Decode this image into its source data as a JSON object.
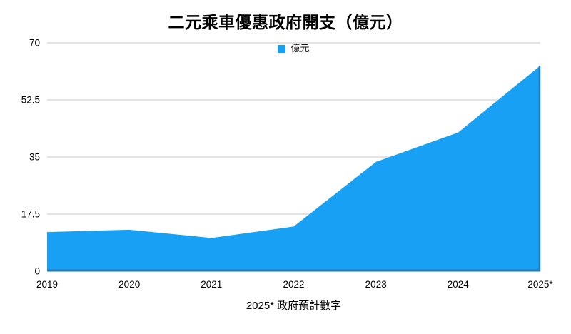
{
  "chart_data": {
    "type": "area",
    "title": "二元乘車優惠政府開支（億元）",
    "legend": {
      "label": "億元",
      "position": "top-center"
    },
    "categories": [
      "2019",
      "2020",
      "2021",
      "2022",
      "2023",
      "2024",
      "2025*"
    ],
    "series": [
      {
        "name": "億元",
        "values": [
          12,
          12.7,
          10.2,
          13.7,
          33.5,
          42.5,
          63
        ]
      }
    ],
    "xlabel": "",
    "ylabel": "",
    "ylim": [
      0,
      70
    ],
    "yticks": [
      0,
      17.5,
      35,
      52.5,
      70
    ],
    "grid": "horizontal",
    "legend_position": "top-center",
    "footnote": "2025* 政府預計數字",
    "colors": {
      "area_fill": "#18A0F5",
      "axis_line": "#1E78B4",
      "gridline": "#C9C9C9",
      "text": "#000000"
    }
  }
}
